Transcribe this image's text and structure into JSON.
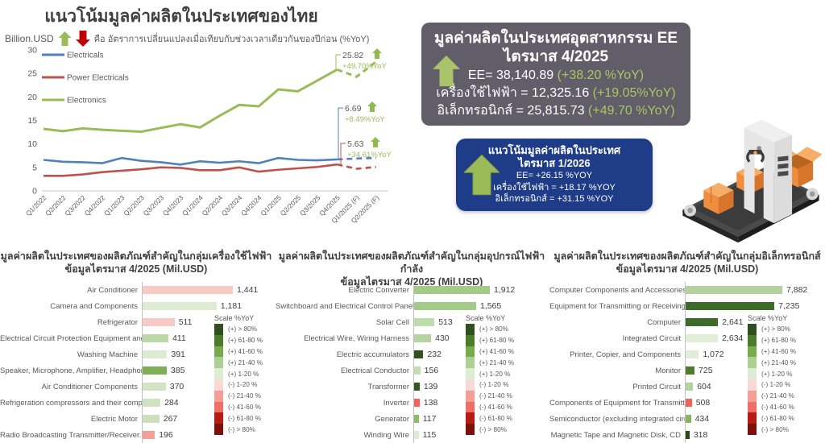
{
  "header": {
    "title": "แนวโน้มมูลค่าผลิตในประเทศของไทย"
  },
  "line_chart_header": {
    "unit_label": "Billion.USD",
    "note": "คือ อัตราการเปลี่ยนแปลงเมื่อเทียบกับช่วงเวลาเดียวกันของปีก่อน (%YoY)"
  },
  "kpi_box": {
    "title_line1": "มูลค่าผลิตในประเทศอุตสาหกรรม EE",
    "title_line2": "ไตรมาส 4/2025",
    "lines": [
      {
        "text": "EE= 38,140.89 ",
        "yoy": "(+38.20 %YoY)"
      },
      {
        "text": "เครื่องใช้ไฟฟ้า = 12,325.16 ",
        "yoy": "(+19.05%YoY)"
      },
      {
        "text": "อิเล็กทรอนิกส์ =  25,815.73 ",
        "yoy": "(+49.70 %YoY)"
      }
    ]
  },
  "forecast_box": {
    "title_line1": "แนวโน้มมูลค่าผลิตในประเทศ",
    "title_line2": "ไตรมาส 1/2026",
    "lines": [
      "EE= +26.15 %YOY",
      "เครื่องใช้ไฟฟ้า = +18.17 %YOY",
      "อิเล็กทรอนิกส์ = +31.15 %YOY"
    ]
  },
  "illustration": "factory-conveyor-belt-with-orange-boxes",
  "scale_legend": {
    "title": "Scale %YoY",
    "labels": [
      "(+) > 80%",
      "(+) 61-80 %",
      "(+) 41-60 %",
      "(+) 21-40 %",
      "(+) 1-20 %",
      "(-) 1-20 %",
      "(-) 21-40 %",
      "(-) 41-60 %",
      "(-) 61-80 %",
      "(-) > 80%"
    ],
    "colors": [
      "#2f4f1f",
      "#4d7a2b",
      "#77ab4c",
      "#aecf93",
      "#ddecd2",
      "#f9d9d6",
      "#f59d97",
      "#ef6f66",
      "#b61b15",
      "#7c100c"
    ]
  },
  "chart_data": [
    {
      "type": "line",
      "title": "แนวโน้มมูลค่าผลิตในประเทศของไทย",
      "ylabel": "Billion.USD",
      "ylim": [
        0,
        30
      ],
      "y_ticks": [
        30,
        25,
        20,
        15,
        10,
        5,
        0
      ],
      "x": [
        "Q1/2022",
        "Q2/2022",
        "Q3/2022",
        "Q4/2022",
        "Q1/2023",
        "Q2/2023",
        "Q3/2023",
        "Q4/2023",
        "Q1/2024",
        "Q2/2024",
        "Q3/2024",
        "Q4/2024",
        "Q1/2025",
        "Q2/2025",
        "Q3/2025",
        "Q4/2025",
        "Q1/2025 (F)",
        "Q2/2025 (F)"
      ],
      "forecast_start_index": 15,
      "series": [
        {
          "name": "Electricals",
          "color": "#4f81bd",
          "values": [
            6.6,
            6.2,
            6.1,
            5.9,
            7.0,
            6.4,
            6.1,
            5.6,
            6.3,
            6.0,
            6.3,
            5.9,
            7.0,
            6.6,
            6.5,
            6.69,
            6.9,
            7.0
          ]
        },
        {
          "name": "Power Electricals",
          "color": "#c0504d",
          "values": [
            3.2,
            3.2,
            3.5,
            4.0,
            4.3,
            4.6,
            5.0,
            4.9,
            4.4,
            4.4,
            5.0,
            4.1,
            4.5,
            4.8,
            5.1,
            5.63,
            4.7,
            5.1
          ]
        },
        {
          "name": "Electronics",
          "color": "#9bbb59",
          "values": [
            13.2,
            12.7,
            13.3,
            13.0,
            12.8,
            12.6,
            13.4,
            14.2,
            13.5,
            16.0,
            18.3,
            18.0,
            21.6,
            21.2,
            23.5,
            25.82,
            24.3,
            27.5
          ]
        }
      ],
      "annotations": [
        {
          "series": "Electronics",
          "value_label": "25.82",
          "yoy_label": "+49.70%YoY",
          "direction": "up"
        },
        {
          "series": "Electricals",
          "value_label": "6.69",
          "yoy_label": "+8.49%YoY",
          "direction": "up"
        },
        {
          "series": "Power Electricals",
          "value_label": "5.63",
          "yoy_label": "+34.61%YoY",
          "direction": "up"
        }
      ]
    },
    {
      "type": "bar",
      "title_line1": "มูลค่าผลิตในประเทศของผลิตภัณฑ์สำคัญในกลุ่มเครื่องใช้ไฟฟ้า",
      "title_line2": "ข้อมูลไตรมาส 4/2025 (Mil.USD)",
      "categories": [
        "Air Conditioner",
        "Camera and Components",
        "Refrigerator",
        "Electrical Circuit Protection Equipment and...",
        "Washing Machine",
        "Speaker, Microphone, Amplifier, Headphone, and...",
        "Air Conditioner Components",
        "Refrigeration compressors and their components",
        "Electric Motor",
        "Radio Broadcasting Transmitter/Receiver..."
      ],
      "values": [
        1441,
        1181,
        511,
        411,
        391,
        385,
        370,
        284,
        267,
        196
      ],
      "value_labels": [
        "1,441",
        "1,181",
        "511",
        "411",
        "391",
        "385",
        "370",
        "284",
        "267",
        "196"
      ],
      "bar_colors": [
        "#f7c9c5",
        "#dcebd1",
        "#f7c9c5",
        "#bcd8a6",
        "#dcebd1",
        "#7fae57",
        "#d3e4c4",
        "#cfe2bf",
        "#cce0bb",
        "#f59d97"
      ]
    },
    {
      "type": "bar",
      "title_line1": "มูลค่าผลิตในประเทศของผลิตภัณฑ์สำคัญในกลุ่มอุปกรณ์ไฟฟ้ากำลัง",
      "title_line2": "ข้อมูลไตรมาส 4/2025 (Mil.USD)",
      "categories": [
        "Electric Converter",
        "Switchboard and Electrical Control Panel",
        "Solar Cell",
        "Electrical Wire, Wiring Harness",
        "Electric accumulators",
        "Electrical Conductor",
        "Transformer",
        "Inverter",
        "Generator",
        "Winding Wire"
      ],
      "values": [
        1912,
        1565,
        513,
        430,
        232,
        156,
        139,
        138,
        117,
        115
      ],
      "value_labels": [
        "1,912",
        "1,565",
        "513",
        "430",
        "232",
        "156",
        "139",
        "138",
        "117",
        "115"
      ],
      "bar_colors": [
        "#a3ca86",
        "#a3ca86",
        "#c0dbad",
        "#b7d4a0",
        "#2f4f1f",
        "#c4ddb2",
        "#335723",
        "#f2625c",
        "#8cba67",
        "#dcebd1"
      ]
    },
    {
      "type": "bar",
      "title_line1": "มูลค่าผลิตในประเทศของผลิตภัณฑ์สำคัญในกลุ่มอิเล็กทรอนิกส์",
      "title_line2": "ข้อมูลไตรมาส 4/2025 (Mil.USD)",
      "categories": [
        "Computer Components and Accessories",
        "Equipment for Transmitting or Receiving Voice,...",
        "Computer",
        "Integrated Circuit",
        "Printer, Copier, and Components",
        "Monitor",
        "Printed Circuit",
        "Components of Equipment for Transmitting or...",
        "Semiconductor (excluding integrated circuit)",
        "Magnetic Tape and Magnetic Disk, CD"
      ],
      "values": [
        7882,
        7235,
        2641,
        2634,
        1072,
        725,
        604,
        508,
        434,
        318
      ],
      "value_labels": [
        "7,882",
        "7,235",
        "2,641",
        "2,634",
        "1,072",
        "725",
        "604",
        "508",
        "434",
        "318"
      ],
      "bar_colors": [
        "#b4d29e",
        "#3f6b2a",
        "#3f6b2a",
        "#e0eed7",
        "#e0eed7",
        "#4d7a2b",
        "#b4d29e",
        "#f2625c",
        "#86b55f",
        "#2a4719"
      ]
    }
  ]
}
